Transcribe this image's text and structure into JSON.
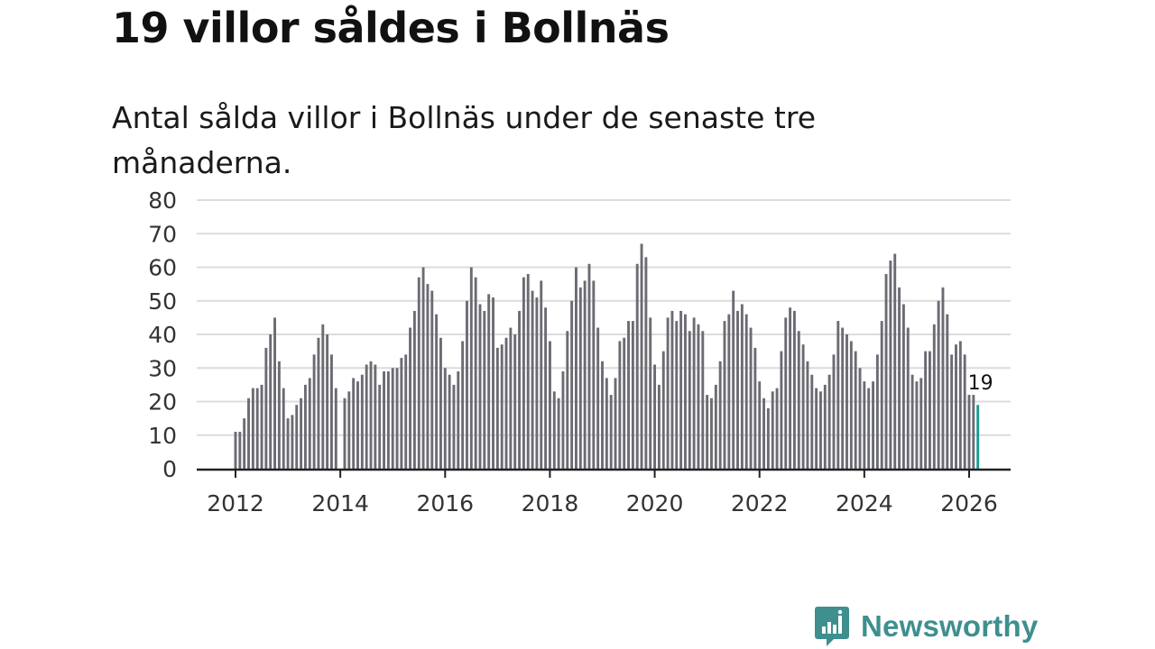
{
  "title": "19 villor såldes i Bollnäs",
  "subtitle": "Antal sålda villor i Bollnäs under de senaste tre månaderna.",
  "brand": {
    "name": "Newsworthy",
    "color": "#3f8f8f",
    "icon": "newsworthy-logo-icon"
  },
  "colors": {
    "bar": "#6b6b73",
    "highlight": "#1b9a94",
    "grid": "#dcdcdc",
    "axis": "#222222"
  },
  "chart_data": {
    "type": "bar",
    "title": "19 villor såldes i Bollnäs",
    "xlabel": "",
    "ylabel": "",
    "ylim": [
      0,
      80
    ],
    "yticks": [
      0,
      10,
      20,
      30,
      40,
      50,
      60,
      70,
      80
    ],
    "xticks": [
      "2012",
      "2014",
      "2016",
      "2018",
      "2020",
      "2022",
      "2024",
      "2026"
    ],
    "start": "2012-01",
    "values": [
      11,
      11,
      15,
      21,
      24,
      24,
      25,
      36,
      40,
      45,
      32,
      24,
      15,
      16,
      19,
      21,
      25,
      27,
      34,
      39,
      43,
      40,
      34,
      24,
      0,
      21,
      23,
      27,
      26,
      28,
      31,
      32,
      31,
      25,
      29,
      29,
      30,
      30,
      33,
      34,
      42,
      47,
      57,
      60,
      55,
      53,
      46,
      39,
      30,
      28,
      25,
      29,
      38,
      50,
      60,
      57,
      49,
      47,
      52,
      51,
      36,
      37,
      39,
      42,
      40,
      47,
      57,
      58,
      53,
      51,
      56,
      48,
      38,
      23,
      21,
      29,
      41,
      50,
      60,
      54,
      56,
      61,
      56,
      42,
      32,
      27,
      22,
      27,
      38,
      39,
      44,
      44,
      61,
      67,
      63,
      45,
      31,
      25,
      35,
      45,
      47,
      44,
      47,
      46,
      41,
      45,
      43,
      41,
      22,
      21,
      25,
      32,
      44,
      46,
      53,
      47,
      49,
      46,
      42,
      36,
      26,
      21,
      18,
      23,
      24,
      35,
      45,
      48,
      47,
      41,
      37,
      32,
      28,
      24,
      23,
      25,
      28,
      34,
      44,
      42,
      40,
      38,
      35,
      30,
      26,
      24,
      26,
      34,
      44,
      58,
      62,
      64,
      54,
      49,
      42,
      28,
      26,
      27,
      35,
      35,
      43,
      50,
      54,
      46,
      34,
      37,
      38,
      34,
      22,
      22,
      19
    ],
    "highlight_last": 1,
    "annotation": "19"
  }
}
